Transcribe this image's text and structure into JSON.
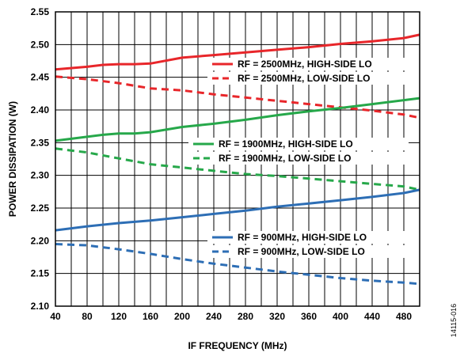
{
  "chart_data": {
    "type": "line",
    "xlabel": "IF FREQUENCY (MHz)",
    "ylabel": "POWER DISSIPATION (W)",
    "xlim": [
      40,
      500
    ],
    "ylim": [
      2.1,
      2.55
    ],
    "x_ticks": [
      "40",
      "80",
      "120",
      "160",
      "200",
      "240",
      "280",
      "320",
      "360",
      "400",
      "440",
      "480"
    ],
    "y_ticks": [
      "2.10",
      "2.15",
      "2.20",
      "2.25",
      "2.30",
      "2.35",
      "2.40",
      "2.45",
      "2.50",
      "2.55"
    ],
    "grid": true,
    "legend_position": "inside, right",
    "figure_id": "14115-016",
    "series": [
      {
        "name": "RF = 2500MHz, HIGH-SIDE LO",
        "color": "#e8262a",
        "dash": "solid",
        "x": [
          40,
          80,
          100,
          120,
          140,
          160,
          200,
          240,
          280,
          320,
          360,
          400,
          440,
          480,
          500
        ],
        "y": [
          2.462,
          2.466,
          2.469,
          2.47,
          2.47,
          2.471,
          2.48,
          2.484,
          2.488,
          2.492,
          2.496,
          2.501,
          2.505,
          2.51,
          2.515
        ]
      },
      {
        "name": "RF = 2500MHz, LOW-SIDE LO",
        "color": "#e8262a",
        "dash": "dashed",
        "x": [
          40,
          80,
          120,
          160,
          200,
          240,
          280,
          320,
          360,
          400,
          440,
          480,
          500
        ],
        "y": [
          2.451,
          2.447,
          2.441,
          2.433,
          2.43,
          2.424,
          2.419,
          2.414,
          2.409,
          2.404,
          2.399,
          2.393,
          2.388
        ]
      },
      {
        "name": "RF = 1900MHz, HIGH-SIDE LO",
        "color": "#26a84a",
        "dash": "solid",
        "x": [
          40,
          80,
          100,
          120,
          140,
          160,
          200,
          240,
          280,
          320,
          360,
          400,
          440,
          480,
          500
        ],
        "y": [
          2.353,
          2.359,
          2.362,
          2.364,
          2.364,
          2.366,
          2.374,
          2.379,
          2.385,
          2.392,
          2.398,
          2.403,
          2.409,
          2.415,
          2.418
        ]
      },
      {
        "name": "RF = 1900MHz, LOW-SIDE LO",
        "color": "#26a84a",
        "dash": "dashed",
        "x": [
          40,
          80,
          120,
          160,
          200,
          240,
          280,
          320,
          360,
          400,
          440,
          480,
          500
        ],
        "y": [
          2.341,
          2.335,
          2.326,
          2.317,
          2.312,
          2.307,
          2.302,
          2.299,
          2.295,
          2.291,
          2.287,
          2.283,
          2.278
        ]
      },
      {
        "name": "RF = 900MHz, HIGH-SIDE LO",
        "color": "#2d6eb5",
        "dash": "solid",
        "x": [
          40,
          80,
          120,
          160,
          200,
          240,
          280,
          320,
          360,
          400,
          440,
          480,
          500
        ],
        "y": [
          2.216,
          2.222,
          2.227,
          2.231,
          2.236,
          2.241,
          2.246,
          2.252,
          2.257,
          2.262,
          2.267,
          2.273,
          2.278
        ]
      },
      {
        "name": "RF = 900MHz, LOW-SIDE LO",
        "color": "#2d6eb5",
        "dash": "dashed",
        "x": [
          40,
          80,
          120,
          160,
          200,
          240,
          280,
          320,
          360,
          400,
          440,
          480,
          500
        ],
        "y": [
          2.195,
          2.193,
          2.187,
          2.18,
          2.172,
          2.165,
          2.159,
          2.153,
          2.148,
          2.143,
          2.139,
          2.136,
          2.134
        ]
      }
    ]
  }
}
